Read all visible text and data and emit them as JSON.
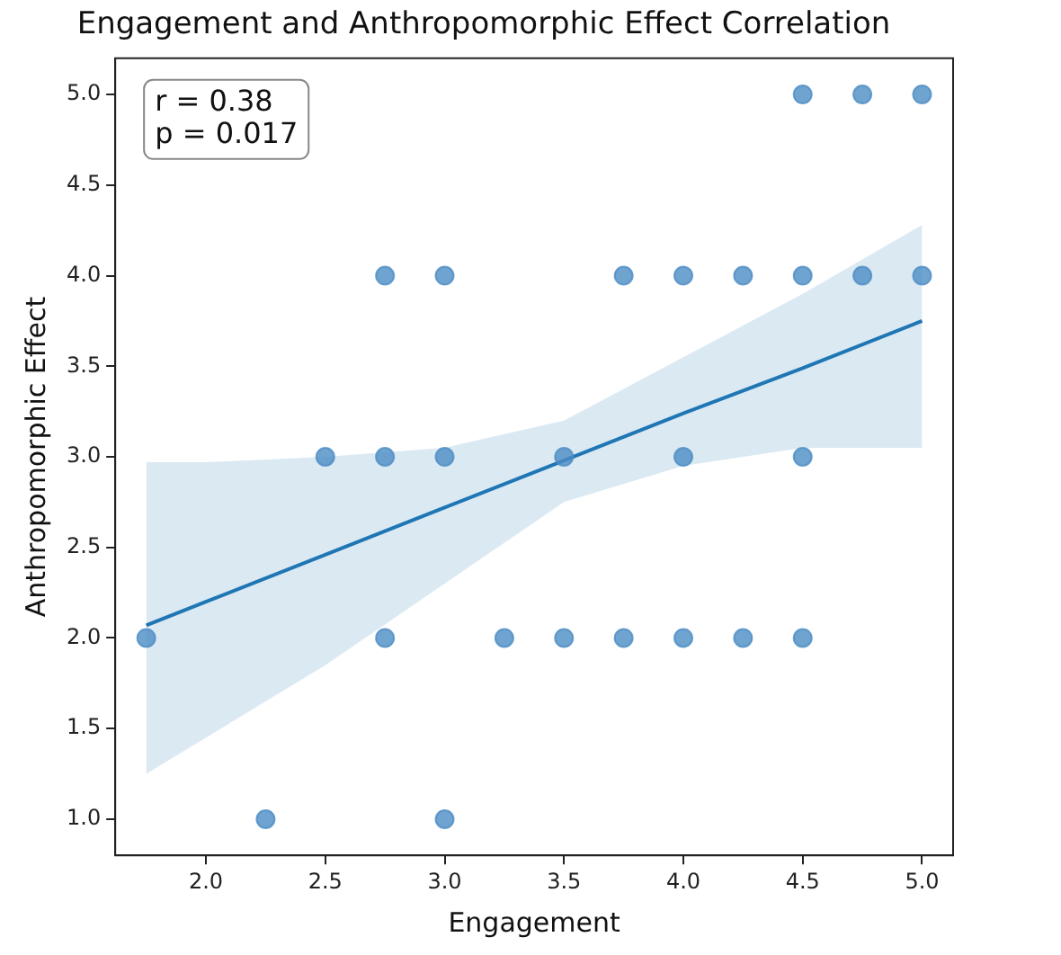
{
  "chart_data": {
    "type": "scatter",
    "title": "Engagement and Anthropomorphic Effect Correlation",
    "xlabel": "Engagement",
    "ylabel": "Anthropomorphic Effect",
    "annotations": [
      "r = 0.38",
      "p = 0.017"
    ],
    "xlim": [
      1.62,
      5.13
    ],
    "ylim": [
      0.8,
      5.2
    ],
    "xticks": [
      {
        "value": 2,
        "label": "2.0"
      },
      {
        "value": 2.5,
        "label": "2.5"
      },
      {
        "value": 3,
        "label": "3.0"
      },
      {
        "value": 3.5,
        "label": "3.5"
      },
      {
        "value": 4,
        "label": "4.0"
      },
      {
        "value": 4.5,
        "label": "4.5"
      },
      {
        "value": 5,
        "label": "5.0"
      }
    ],
    "yticks": [
      {
        "value": 1,
        "label": "1.0"
      },
      {
        "value": 1.5,
        "label": "1.5"
      },
      {
        "value": 2,
        "label": "2.0"
      },
      {
        "value": 2.5,
        "label": "2.5"
      },
      {
        "value": 3,
        "label": "3.0"
      },
      {
        "value": 3.5,
        "label": "3.5"
      },
      {
        "value": 4,
        "label": "4.0"
      },
      {
        "value": 4.5,
        "label": "4.5"
      },
      {
        "value": 5,
        "label": "5.0"
      }
    ],
    "grid": false,
    "legend": false,
    "marker": "circle",
    "series": [
      {
        "color": "#4b8cc4",
        "x": [
          4.5,
          4.75,
          5.0,
          2.75,
          3.0,
          3.75,
          4.0,
          4.25,
          4.5,
          4.75,
          5.0,
          2.5,
          2.75,
          3.0,
          3.5,
          4.0,
          4.5,
          1.75,
          2.75,
          3.25,
          3.5,
          3.75,
          4.0,
          4.25,
          4.5,
          2.25,
          3.0
        ],
        "values": [
          5,
          5,
          5,
          4,
          4,
          4,
          4,
          4,
          4,
          4,
          4,
          3,
          3,
          3,
          3,
          3,
          3,
          2,
          2,
          2,
          2,
          2,
          2,
          2,
          2,
          1,
          1
        ]
      },
      {
        "type": "line",
        "marker": "none",
        "color": "#1f77b4",
        "x": [
          1.75,
          2.0,
          2.5,
          3.0,
          3.5,
          4.0,
          4.5,
          5.0
        ],
        "values": [
          2.07,
          2.2,
          2.46,
          2.72,
          2.98,
          3.24,
          3.49,
          3.75
        ],
        "lower": [
          1.25,
          1.45,
          1.85,
          2.3,
          2.75,
          2.95,
          3.05,
          3.05
        ],
        "upper": [
          2.97,
          2.97,
          3.0,
          3.05,
          3.2,
          3.55,
          3.9,
          4.28
        ]
      }
    ]
  }
}
